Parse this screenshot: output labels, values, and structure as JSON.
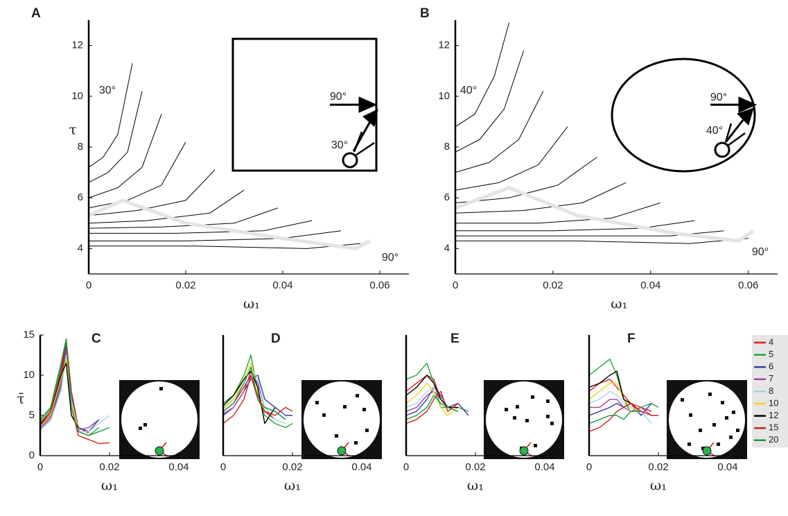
{
  "chart_data": [
    {
      "type": "line",
      "label": "A",
      "xlabel": "ω₁",
      "ylabel": "τ",
      "xlim": [
        0,
        0.066
      ],
      "ylim": [
        3,
        13
      ],
      "xticks": [
        0,
        0.02,
        0.04,
        0.06
      ],
      "yticks": [
        4,
        6,
        8,
        10,
        12
      ],
      "annotations": [
        "30°",
        "90°",
        "90°",
        "30°"
      ],
      "series": [
        {
          "color": "#000000",
          "width": 1,
          "x": [
            0,
            0.003,
            0.006,
            0.009
          ],
          "values": [
            7.2,
            7.6,
            8.5,
            11.3
          ]
        },
        {
          "color": "#000000",
          "width": 1,
          "x": [
            0,
            0.004,
            0.008,
            0.011
          ],
          "values": [
            6.6,
            7.0,
            7.8,
            10.2
          ]
        },
        {
          "color": "#000000",
          "width": 1,
          "x": [
            0,
            0.006,
            0.011,
            0.015
          ],
          "values": [
            6.0,
            6.4,
            7.2,
            9.3
          ]
        },
        {
          "color": "#000000",
          "width": 1,
          "x": [
            0,
            0.008,
            0.015,
            0.02
          ],
          "values": [
            5.6,
            5.9,
            6.5,
            8.2
          ]
        },
        {
          "color": "#000000",
          "width": 1,
          "x": [
            0,
            0.01,
            0.02,
            0.026
          ],
          "values": [
            5.3,
            5.5,
            5.9,
            7.1
          ]
        },
        {
          "color": "#000000",
          "width": 1,
          "x": [
            0,
            0.012,
            0.025,
            0.032
          ],
          "values": [
            5.0,
            5.1,
            5.4,
            6.3
          ]
        },
        {
          "color": "#000000",
          "width": 1,
          "x": [
            0,
            0.015,
            0.03,
            0.039
          ],
          "values": [
            4.8,
            4.85,
            5.0,
            5.6
          ]
        },
        {
          "color": "#000000",
          "width": 1,
          "x": [
            0,
            0.018,
            0.036,
            0.046
          ],
          "values": [
            4.6,
            4.6,
            4.7,
            5.1
          ]
        },
        {
          "color": "#000000",
          "width": 1,
          "x": [
            0,
            0.02,
            0.04,
            0.052
          ],
          "values": [
            4.3,
            4.3,
            4.4,
            4.7
          ]
        },
        {
          "color": "#000000",
          "width": 1,
          "x": [
            0,
            0.022,
            0.045,
            0.056
          ],
          "values": [
            4.1,
            4.1,
            4.0,
            4.2
          ]
        },
        {
          "color": "#e4e4e4",
          "width": 5,
          "x": [
            0,
            0.007,
            0.02,
            0.04,
            0.055,
            0.058
          ],
          "values": [
            5.3,
            5.9,
            5.0,
            4.4,
            4.0,
            4.3
          ]
        }
      ]
    },
    {
      "type": "line",
      "label": "B",
      "xlabel": "ω₁",
      "xlim": [
        0,
        0.066
      ],
      "ylim": [
        3,
        13
      ],
      "xticks": [
        0,
        0.02,
        0.04,
        0.06
      ],
      "yticks": [
        4,
        6,
        8,
        10,
        12
      ],
      "annotations": [
        "40°",
        "90°",
        "90°",
        "40°"
      ],
      "series": [
        {
          "color": "#000000",
          "width": 1,
          "x": [
            0,
            0.004,
            0.008,
            0.011
          ],
          "values": [
            8.8,
            9.3,
            10.8,
            12.9
          ]
        },
        {
          "color": "#000000",
          "width": 1,
          "x": [
            0,
            0.005,
            0.01,
            0.014
          ],
          "values": [
            7.8,
            8.3,
            9.5,
            11.8
          ]
        },
        {
          "color": "#000000",
          "width": 1,
          "x": [
            0,
            0.007,
            0.013,
            0.018
          ],
          "values": [
            7.0,
            7.4,
            8.3,
            10.2
          ]
        },
        {
          "color": "#000000",
          "width": 1,
          "x": [
            0,
            0.009,
            0.017,
            0.023
          ],
          "values": [
            6.3,
            6.6,
            7.3,
            8.8
          ]
        },
        {
          "color": "#000000",
          "width": 1,
          "x": [
            0,
            0.011,
            0.021,
            0.029
          ],
          "values": [
            5.8,
            6.0,
            6.5,
            7.6
          ]
        },
        {
          "color": "#000000",
          "width": 1,
          "x": [
            0,
            0.014,
            0.026,
            0.035
          ],
          "values": [
            5.4,
            5.5,
            5.8,
            6.6
          ]
        },
        {
          "color": "#000000",
          "width": 1,
          "x": [
            0,
            0.017,
            0.032,
            0.042
          ],
          "values": [
            5.0,
            5.0,
            5.2,
            5.8
          ]
        },
        {
          "color": "#000000",
          "width": 1,
          "x": [
            0,
            0.02,
            0.038,
            0.049
          ],
          "values": [
            4.7,
            4.7,
            4.8,
            5.1
          ]
        },
        {
          "color": "#000000",
          "width": 1,
          "x": [
            0,
            0.023,
            0.044,
            0.055
          ],
          "values": [
            4.5,
            4.5,
            4.5,
            4.7
          ]
        },
        {
          "color": "#000000",
          "width": 1,
          "x": [
            0,
            0.025,
            0.048,
            0.06
          ],
          "values": [
            4.3,
            4.3,
            4.2,
            4.4
          ]
        },
        {
          "color": "#e4e4e4",
          "width": 5,
          "x": [
            0,
            0.011,
            0.025,
            0.045,
            0.058,
            0.061
          ],
          "values": [
            5.6,
            6.4,
            5.3,
            4.6,
            4.3,
            4.7
          ]
        }
      ]
    },
    {
      "type": "line",
      "label": "C",
      "xlabel": "ω₁",
      "ylabel": "τ̄",
      "xlim": [
        0,
        0.04
      ],
      "ylim": [
        0,
        15
      ],
      "xticks": [
        0,
        0.02,
        0.04
      ],
      "yticks": [
        0,
        5,
        10,
        15
      ],
      "x": [
        0,
        0.003,
        0.006,
        0.0075,
        0.009,
        0.011,
        0.014,
        0.017,
        0.02
      ],
      "series": [
        {
          "color": "#e41a1c",
          "values": [
            3.8,
            5.2,
            9.5,
            14.5,
            8,
            3.5,
            2.8,
            null,
            null
          ]
        },
        {
          "color": "#1fa83a",
          "values": [
            4.2,
            5.8,
            11,
            14,
            7,
            3,
            2.5,
            3.5,
            null
          ]
        },
        {
          "color": "#3a3a9e",
          "values": [
            3.5,
            4.8,
            9,
            13.5,
            7.5,
            3.5,
            3,
            4.5,
            null
          ]
        },
        {
          "color": "#a0449e",
          "values": [
            3.3,
            4.5,
            8.5,
            13,
            7,
            3.2,
            3.5,
            4.5,
            null
          ]
        },
        {
          "color": "#9fd4ea",
          "values": [
            3.2,
            4.4,
            8,
            12.5,
            7,
            3,
            3,
            4,
            5
          ]
        },
        {
          "color": "#f2d21b",
          "values": [
            3.6,
            5,
            9.5,
            12,
            6.5,
            3.5,
            null,
            null,
            null
          ]
        },
        {
          "color": "#000000",
          "values": [
            3.9,
            5.5,
            10,
            11.5,
            5,
            3.5,
            null,
            null,
            null
          ]
        },
        {
          "color": "#c8211c",
          "values": [
            4,
            5.5,
            10.5,
            14.5,
            6,
            2.5,
            2,
            1.5,
            1.6
          ]
        },
        {
          "color": "#1a9a3a",
          "values": [
            4.5,
            6,
            11.5,
            14.5,
            6,
            3,
            2.5,
            3,
            3.5
          ]
        }
      ]
    },
    {
      "type": "line",
      "label": "D",
      "xlabel": "ω₁",
      "xlim": [
        0,
        0.04
      ],
      "ylim": [
        0,
        15
      ],
      "xticks": [
        0,
        0.02,
        0.04
      ],
      "x": [
        0,
        0.003,
        0.006,
        0.008,
        0.01,
        0.012,
        0.015,
        0.018,
        0.02
      ],
      "series": [
        {
          "color": "#e41a1c",
          "values": [
            5.5,
            6.5,
            8.5,
            10,
            7.5,
            5.5,
            4.5,
            null,
            null
          ]
        },
        {
          "color": "#1fa83a",
          "values": [
            6.5,
            7.5,
            10,
            12.5,
            8,
            5,
            4,
            3.5,
            4
          ]
        },
        {
          "color": "#3a3a9e",
          "values": [
            5,
            6,
            8,
            9.5,
            10,
            7,
            6,
            5,
            5
          ]
        },
        {
          "color": "#a0449e",
          "values": [
            5.2,
            6,
            8,
            10.5,
            9,
            6,
            5.5,
            4.5,
            null
          ]
        },
        {
          "color": "#9fd4ea",
          "values": [
            5.8,
            7,
            9,
            11,
            9.5,
            6,
            4.5,
            4,
            null
          ]
        },
        {
          "color": "#f2d21b",
          "values": [
            6,
            7,
            9.5,
            11.5,
            8,
            5.5,
            5,
            null,
            null
          ]
        },
        {
          "color": "#000000",
          "values": [
            6.2,
            7.5,
            9.5,
            10.5,
            8.5,
            4,
            6,
            null,
            null
          ]
        },
        {
          "color": "#c8211c",
          "values": [
            4,
            5,
            7,
            10,
            7,
            5.5,
            5,
            6,
            5.5
          ]
        },
        {
          "color": "#1a9a3a",
          "values": [
            5.5,
            6.5,
            9,
            11,
            7,
            6,
            5.5,
            4.5,
            null
          ]
        }
      ]
    },
    {
      "type": "line",
      "label": "E",
      "xlabel": "ω₁",
      "xlim": [
        0,
        0.04
      ],
      "ylim": [
        0,
        15
      ],
      "xticks": [
        0,
        0.02,
        0.04
      ],
      "x": [
        0,
        0.003,
        0.006,
        0.008,
        0.01,
        0.012,
        0.015,
        0.018,
        0.02
      ],
      "series": [
        {
          "color": "#e41a1c",
          "values": [
            8,
            9,
            10,
            9.5,
            7,
            6,
            6,
            null,
            null
          ]
        },
        {
          "color": "#1fa83a",
          "values": [
            9.5,
            10,
            11.5,
            9,
            6,
            6,
            6,
            5.5,
            null
          ]
        },
        {
          "color": "#3a3a9e",
          "values": [
            5,
            5.5,
            7,
            8.5,
            7.5,
            6,
            6.5,
            5,
            null
          ]
        },
        {
          "color": "#a0449e",
          "values": [
            5.5,
            6,
            7.5,
            8,
            7,
            6,
            6,
            null,
            null
          ]
        },
        {
          "color": "#9fd4ea",
          "values": [
            6,
            6.5,
            8,
            8.5,
            7,
            6,
            5.5,
            null,
            null
          ]
        },
        {
          "color": "#f2d21b",
          "values": [
            6.5,
            7.5,
            9,
            8,
            6,
            5,
            6,
            null,
            null
          ]
        },
        {
          "color": "#000000",
          "values": [
            7.5,
            8.5,
            10,
            9,
            7,
            6,
            6,
            null,
            null
          ]
        },
        {
          "color": "#c8211c",
          "values": [
            4,
            4.5,
            5.5,
            7,
            8,
            5.5,
            6.5,
            null,
            null
          ]
        },
        {
          "color": "#1a9a3a",
          "values": [
            4.5,
            5,
            6,
            7.5,
            6.5,
            6,
            5.5,
            null,
            null
          ]
        }
      ]
    },
    {
      "type": "line",
      "label": "F",
      "xlabel": "ω₁",
      "xlim": [
        0,
        0.04
      ],
      "ylim": [
        0,
        15
      ],
      "xticks": [
        0,
        0.02,
        0.04
      ],
      "legend": "outside-right",
      "x": [
        0,
        0.003,
        0.006,
        0.008,
        0.01,
        0.012,
        0.015,
        0.018,
        0.02
      ],
      "series": [
        {
          "name": "4",
          "color": "#e41a1c",
          "values": [
            8,
            9,
            9.5,
            8.5,
            7.5,
            6.5,
            6,
            5.5,
            null
          ]
        },
        {
          "name": "5",
          "color": "#1fa83a",
          "values": [
            10,
            11,
            12,
            10,
            7,
            5.5,
            6,
            6.5,
            6
          ]
        },
        {
          "name": "6",
          "color": "#3a3a9e",
          "values": [
            5,
            5.5,
            6,
            6.5,
            6,
            6.5,
            5,
            6.5,
            null
          ]
        },
        {
          "name": "7",
          "color": "#a0449e",
          "values": [
            6,
            6,
            7,
            7,
            6,
            5.5,
            6,
            5,
            null
          ]
        },
        {
          "name": "8",
          "color": "#9fd4ea",
          "values": [
            6.5,
            7,
            8,
            7.5,
            6.5,
            5.5,
            5.5,
            4,
            null
          ]
        },
        {
          "name": "10",
          "color": "#f2d21b",
          "values": [
            7,
            8,
            9,
            9,
            7,
            6,
            5.5,
            null,
            null
          ]
        },
        {
          "name": "12",
          "color": "#000000",
          "values": [
            8.5,
            9,
            10,
            10.5,
            7,
            6.5,
            5.5,
            null,
            null
          ]
        },
        {
          "name": "15",
          "color": "#c8211c",
          "values": [
            3,
            3.5,
            4.5,
            5.5,
            6,
            6.5,
            5.5,
            5,
            5
          ]
        },
        {
          "name": "20",
          "color": "#1a9a3a",
          "values": [
            4,
            4.5,
            5,
            5,
            4.5,
            5.5,
            5.5,
            null,
            null
          ]
        }
      ]
    }
  ]
}
